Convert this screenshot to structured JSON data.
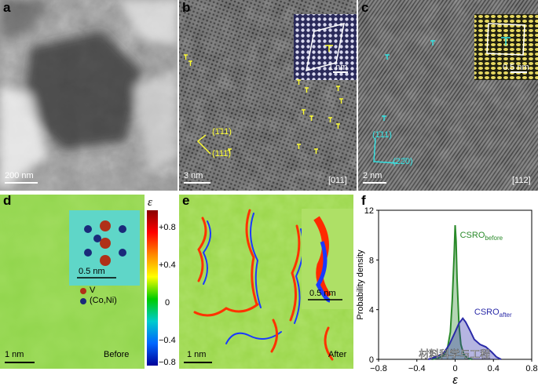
{
  "panels": {
    "a": {
      "label": "a",
      "scale": "200 nm"
    },
    "b": {
      "label": "b",
      "scale": "3 nm",
      "zone": "[011]",
      "inset_scale": "1 nm",
      "plane1": "(1̄11)",
      "plane2": "(111̄)"
    },
    "c": {
      "label": "c",
      "scale": "2 nm",
      "zone": "[112]",
      "inset_scale": "0.5 nm",
      "plane1": "(1̄11)",
      "plane2": "(22̄0)"
    },
    "d": {
      "label": "d",
      "scale": "1 nm",
      "tag": "Before",
      "inset_scale": "0.5 nm",
      "legend_v": "V",
      "legend_coni": "(Co,Ni)"
    },
    "e": {
      "label": "e",
      "scale": "1 nm",
      "tag": "After",
      "inset_scale": "0.5 nm"
    },
    "f": {
      "label": "f"
    }
  },
  "colorbar": {
    "symbol": "ε",
    "ticks": [
      "+0.8",
      "+0.4",
      "0",
      "−0.4",
      "−0.8"
    ]
  },
  "chart_data": {
    "type": "area",
    "xlabel": "ε",
    "ylabel": "Probability density",
    "xlim": [
      -0.8,
      0.8
    ],
    "ylim": [
      0,
      12
    ],
    "xticks": [
      "−0.8",
      "−0.4",
      "0",
      "0.4",
      "0.8"
    ],
    "yticks": [
      "0",
      "4",
      "8",
      "12"
    ],
    "series": [
      {
        "name": "CSRO_before",
        "label_main": "CSRO",
        "label_sub": "before",
        "color": "#2a8a2a",
        "x": [
          -0.24,
          -0.18,
          -0.12,
          -0.08,
          -0.05,
          -0.03,
          -0.01,
          0.0,
          0.01,
          0.02,
          0.04,
          0.06,
          0.09,
          0.13,
          0.18
        ],
        "y": [
          0,
          0.1,
          0.3,
          0.9,
          2.2,
          4.8,
          8.5,
          10.8,
          9.5,
          6.5,
          2.8,
          1.2,
          0.4,
          0.1,
          0
        ]
      },
      {
        "name": "CSRO_after",
        "label_main": "CSRO",
        "label_sub": "after",
        "color": "#2a2aa8",
        "x": [
          -0.28,
          -0.2,
          -0.12,
          -0.06,
          0.0,
          0.04,
          0.08,
          0.11,
          0.15,
          0.2,
          0.26,
          0.32,
          0.38,
          0.43,
          0.48
        ],
        "y": [
          0,
          0.2,
          0.5,
          1.2,
          2.2,
          2.9,
          3.3,
          3.0,
          2.4,
          1.6,
          1.2,
          1.0,
          0.6,
          0.2,
          0
        ]
      }
    ]
  },
  "watermark": "材料科学与工程"
}
